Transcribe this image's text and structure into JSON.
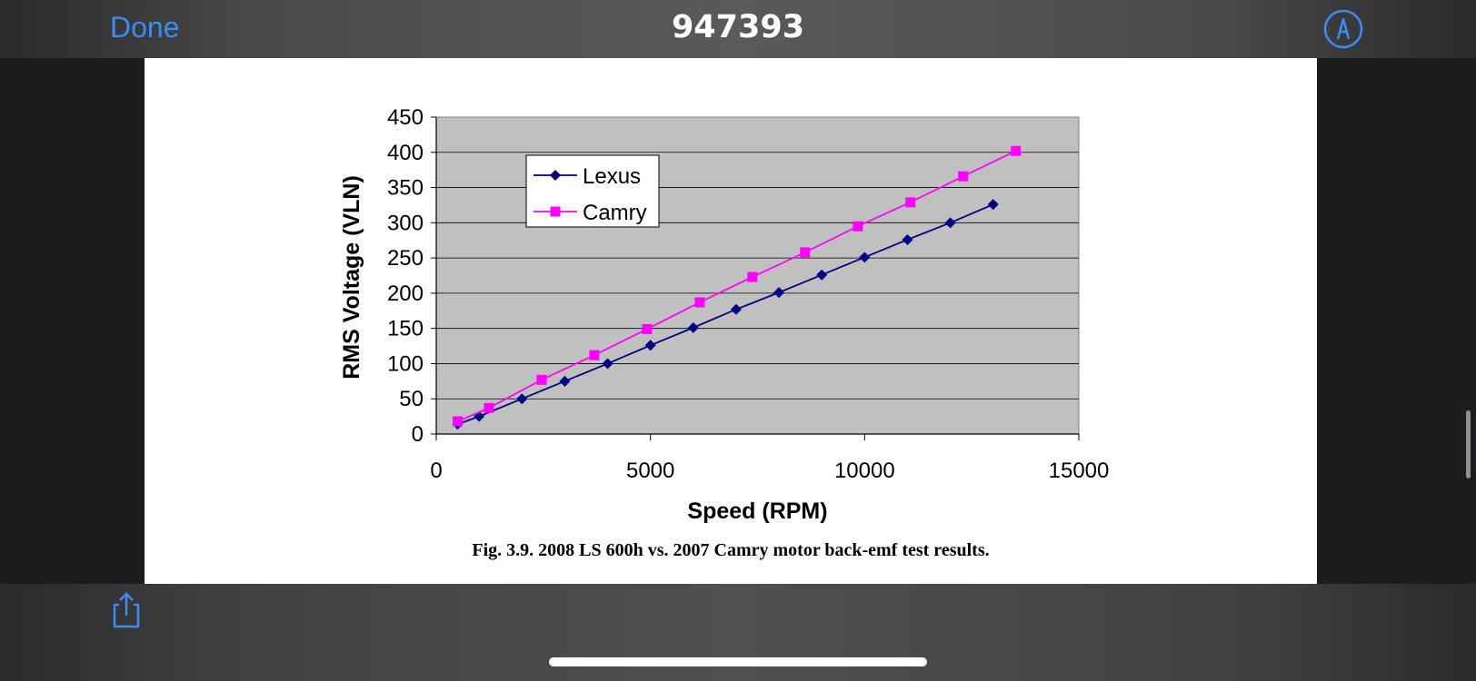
{
  "topbar": {
    "done_label": "Done",
    "title": "947393",
    "markup_icon": "markup-pen-icon"
  },
  "bottombar": {
    "share_icon": "share-icon"
  },
  "document": {
    "caption": "Fig. 3.9. 2008 LS 600h vs. 2007 Camry motor back-emf test results."
  },
  "chart_data": {
    "type": "line",
    "title": "",
    "xlabel": "Speed (RPM)",
    "ylabel": "RMS Voltage (VLN)",
    "xlim": [
      0,
      15000
    ],
    "ylim": [
      0,
      450
    ],
    "xticks": [
      "0",
      "5000",
      "10000",
      "15000"
    ],
    "yticks": [
      "0",
      "50",
      "100",
      "150",
      "200",
      "250",
      "300",
      "350",
      "400",
      "450"
    ],
    "grid": "horizontal",
    "legend_position": "top-left",
    "plot_background": "#c0c0c0",
    "series": [
      {
        "name": "Lexus",
        "color": "#000080",
        "marker": "diamond",
        "points": [
          [
            500,
            14
          ],
          [
            1000,
            25
          ],
          [
            2000,
            50
          ],
          [
            3000,
            75
          ],
          [
            4000,
            100
          ],
          [
            5000,
            126
          ],
          [
            6000,
            151
          ],
          [
            7000,
            177
          ],
          [
            8000,
            201
          ],
          [
            9000,
            226
          ],
          [
            10000,
            251
          ],
          [
            11000,
            276
          ],
          [
            12000,
            300
          ],
          [
            13000,
            326
          ]
        ]
      },
      {
        "name": "Camry",
        "color": "#ff00ff",
        "marker": "square",
        "points": [
          [
            500,
            18
          ],
          [
            1230,
            37
          ],
          [
            2460,
            77
          ],
          [
            3690,
            112
          ],
          [
            4920,
            149
          ],
          [
            6150,
            187
          ],
          [
            7380,
            223
          ],
          [
            8610,
            258
          ],
          [
            9840,
            295
          ],
          [
            11070,
            329
          ],
          [
            12300,
            366
          ],
          [
            13530,
            402
          ]
        ]
      }
    ]
  }
}
